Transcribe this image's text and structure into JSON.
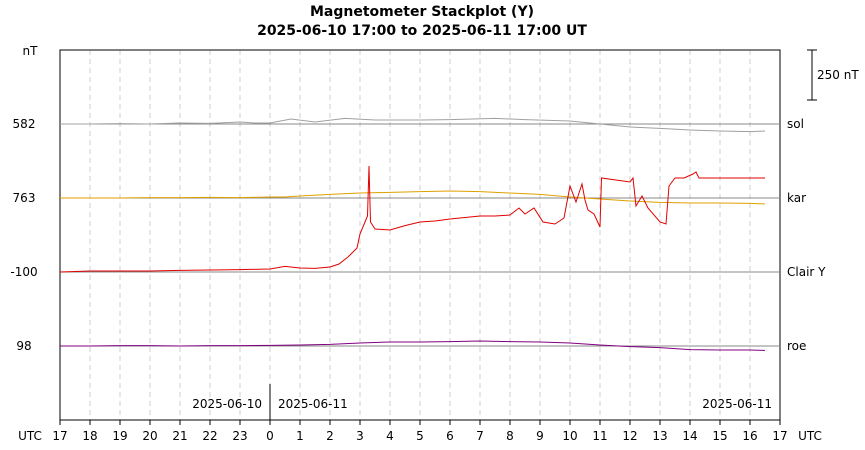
{
  "chart_data": {
    "type": "line",
    "title": "Magnetometer Stackplot (Y)",
    "subtitle": "2025-06-10 17:00 to 2025-06-11 17:00 UT",
    "y_unit_label": "nT",
    "x_unit_label_left": "UTC",
    "x_unit_label_right": "UTC",
    "scale_bar_label": "250 nT",
    "scale_bar_nT": 250,
    "x_range_hours": [
      0,
      24
    ],
    "x_ticks": [
      "17",
      "18",
      "19",
      "20",
      "21",
      "22",
      "23",
      "0",
      "1",
      "2",
      "3",
      "4",
      "5",
      "6",
      "7",
      "8",
      "9",
      "10",
      "11",
      "12",
      "13",
      "14",
      "15",
      "16",
      "17"
    ],
    "date_labels": {
      "left_of_midnight": "2025-06-10",
      "right_of_midnight": "2025-06-11",
      "end": "2025-06-11"
    },
    "grid": "vertical dashed",
    "series": [
      {
        "name": "sol",
        "baseline_label": "582",
        "color": "#a0a0a0",
        "points_nT": [
          [
            0,
            0
          ],
          [
            1,
            0
          ],
          [
            2,
            -2
          ],
          [
            3,
            0
          ],
          [
            4,
            -5
          ],
          [
            5,
            -3
          ],
          [
            6,
            -10
          ],
          [
            6.5,
            -5
          ],
          [
            7,
            -5
          ],
          [
            7.7,
            -25
          ],
          [
            8.5,
            -10
          ],
          [
            9.5,
            -28
          ],
          [
            10.5,
            -20
          ],
          [
            12,
            -20
          ],
          [
            13,
            -22
          ],
          [
            14.5,
            -28
          ],
          [
            15.5,
            -22
          ],
          [
            17,
            -15
          ],
          [
            18,
            0
          ],
          [
            19,
            15
          ],
          [
            20,
            22
          ],
          [
            21,
            30
          ],
          [
            22,
            35
          ],
          [
            23,
            38
          ],
          [
            23.5,
            35
          ]
        ]
      },
      {
        "name": "kar",
        "baseline_label": "763",
        "color": "#e0a000",
        "points_nT": [
          [
            0,
            0
          ],
          [
            1,
            0
          ],
          [
            2,
            0
          ],
          [
            3,
            -2
          ],
          [
            4,
            -2
          ],
          [
            5,
            -3
          ],
          [
            6,
            -2
          ],
          [
            7,
            -5
          ],
          [
            7.5,
            -5
          ],
          [
            8,
            -10
          ],
          [
            9,
            -18
          ],
          [
            10,
            -25
          ],
          [
            11,
            -28
          ],
          [
            12,
            -32
          ],
          [
            13,
            -35
          ],
          [
            14,
            -32
          ],
          [
            15,
            -25
          ],
          [
            16,
            -18
          ],
          [
            17,
            -5
          ],
          [
            18,
            5
          ],
          [
            19,
            15
          ],
          [
            20,
            22
          ],
          [
            21,
            25
          ],
          [
            22,
            25
          ],
          [
            23,
            27
          ],
          [
            23.5,
            30
          ]
        ]
      },
      {
        "name": "Clair Y",
        "baseline_label": "-100",
        "color": "#e00000",
        "segments_nT": [
          [
            [
              0,
              0
            ],
            [
              1,
              -5
            ],
            [
              2,
              -5
            ],
            [
              3,
              -5
            ],
            [
              4,
              -8
            ],
            [
              5,
              -10
            ],
            [
              6,
              -12
            ],
            [
              7,
              -15
            ],
            [
              7.5,
              -28
            ],
            [
              8,
              -20
            ],
            [
              8.5,
              -18
            ],
            [
              9,
              -25
            ],
            [
              9.3,
              -40
            ],
            [
              9.6,
              -75
            ],
            [
              9.9,
              -120
            ],
            [
              10,
              -190
            ],
            [
              10.25,
              -280
            ],
            [
              10.3,
              -530
            ],
            [
              10.35,
              -250
            ],
            [
              10.5,
              -215
            ],
            [
              11,
              -210
            ],
            [
              11.5,
              -232
            ],
            [
              12,
              -250
            ],
            [
              12.5,
              -255
            ],
            [
              13,
              -265
            ],
            [
              14,
              -280
            ],
            [
              14.5,
              -280
            ],
            [
              15,
              -285
            ],
            [
              15.3,
              -320
            ],
            [
              15.5,
              -290
            ],
            [
              15.8,
              -320
            ],
            [
              16.1,
              -250
            ],
            [
              16.5,
              -240
            ],
            [
              16.8,
              -270
            ],
            [
              17,
              -430
            ],
            [
              17.2,
              -350
            ],
            [
              17.4,
              -440
            ],
            [
              17.5,
              -360
            ],
            [
              17.6,
              -310
            ],
            [
              17.8,
              -290
            ],
            [
              18,
              -225
            ],
            [
              18.05,
              -470
            ],
            [
              19,
              -450
            ],
            [
              19.1,
              -470
            ],
            [
              19.2,
              -330
            ],
            [
              19.4,
              -380
            ],
            [
              19.6,
              -320
            ],
            [
              20,
              -250
            ],
            [
              20.2,
              -240
            ],
            [
              20.3,
              -430
            ],
            [
              20.5,
              -470
            ],
            [
              20.8,
              -470
            ],
            [
              21.1,
              -490
            ],
            [
              21.2,
              -500
            ],
            [
              21.3,
              -470
            ],
            [
              21.5,
              -470
            ],
            [
              21.5,
              -470
            ],
            [
              22.5,
              -470
            ],
            [
              23,
              -470
            ],
            [
              23.5,
              -470
            ]
          ]
        ]
      },
      {
        "name": "roe",
        "baseline_label": "98",
        "color": "#800080",
        "points_nT": [
          [
            0,
            0
          ],
          [
            1,
            0
          ],
          [
            2,
            -2
          ],
          [
            3,
            -2
          ],
          [
            4,
            0
          ],
          [
            5,
            -2
          ],
          [
            6,
            -2
          ],
          [
            7,
            -3
          ],
          [
            8,
            -5
          ],
          [
            9,
            -8
          ],
          [
            10,
            -15
          ],
          [
            11,
            -20
          ],
          [
            12,
            -20
          ],
          [
            13,
            -22
          ],
          [
            14,
            -25
          ],
          [
            15,
            -22
          ],
          [
            16,
            -20
          ],
          [
            17,
            -15
          ],
          [
            18,
            -5
          ],
          [
            19,
            3
          ],
          [
            20,
            8
          ],
          [
            21,
            18
          ],
          [
            22,
            20
          ],
          [
            23,
            20
          ],
          [
            23.5,
            22
          ]
        ]
      }
    ]
  }
}
